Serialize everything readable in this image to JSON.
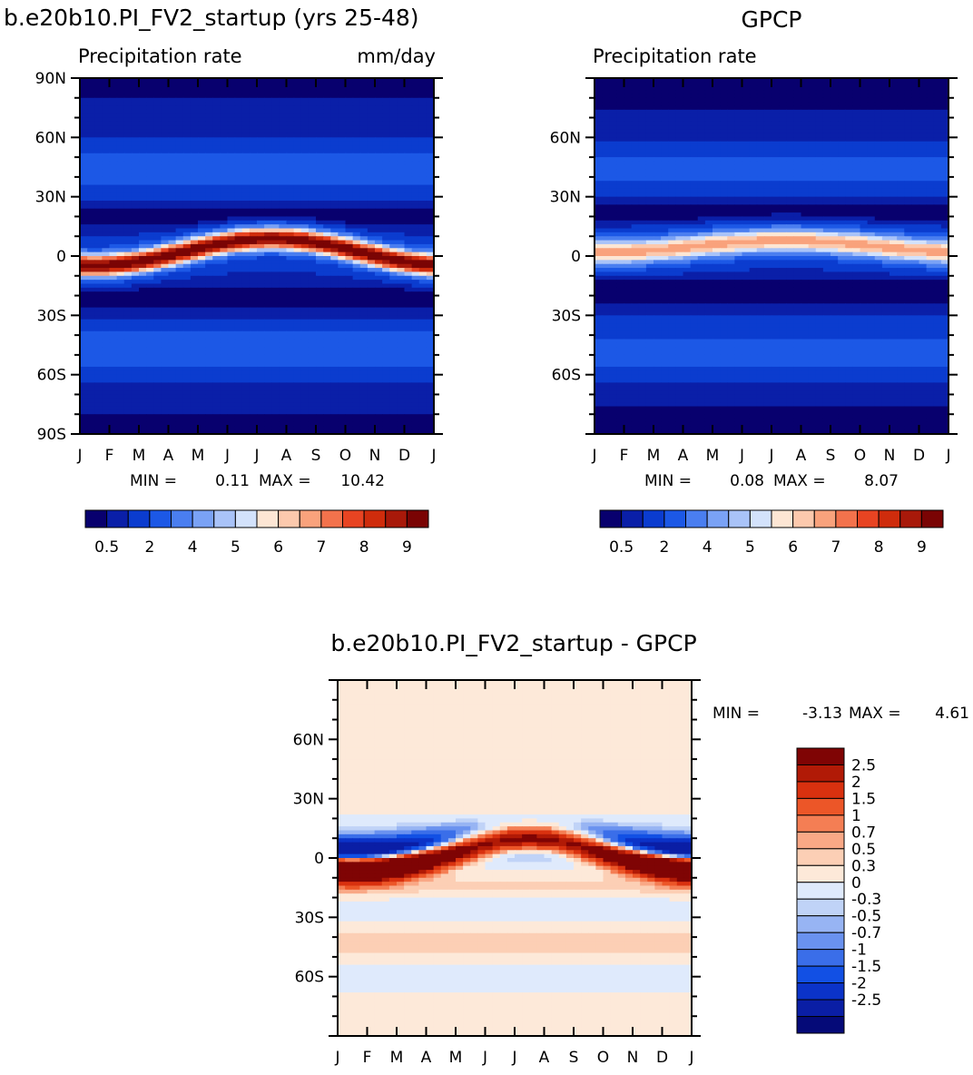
{
  "colors": {
    "abs_scale": [
      "#08006e",
      "#0a1fa8",
      "#0b3ccf",
      "#1c58e6",
      "#4a7ef0",
      "#7aa2f5",
      "#a9c3f8",
      "#d3e2fb",
      "#fde6d4",
      "#fcc9ad",
      "#f9a27c",
      "#f3724c",
      "#e84422",
      "#cf2c0c",
      "#a8190a",
      "#7a0404"
    ],
    "diff_scale": [
      "#050a78",
      "#0a1ea5",
      "#0b33c8",
      "#1250e4",
      "#3a6ee9",
      "#6a92ef",
      "#97b4f3",
      "#c0d3f7",
      "#dfeafc",
      "#fde9d9",
      "#fccfb5",
      "#f9a886",
      "#f47e54",
      "#ec5628",
      "#d9310f",
      "#b11a06",
      "#7f0404"
    ]
  },
  "chart_data": [
    {
      "id": "model",
      "type": "heatmap",
      "title": "b.e20b10.PI_FV2_startup (yrs 25-48)",
      "subtitle_left": "Precipitation rate",
      "subtitle_right": "mm/day",
      "x_tick_labels": [
        "J",
        "F",
        "M",
        "A",
        "M",
        "J",
        "J",
        "A",
        "S",
        "O",
        "N",
        "D",
        "J"
      ],
      "y_tick_labels": [
        "90N",
        "60N",
        "30N",
        "0",
        "30S",
        "60S",
        "90S"
      ],
      "y_tick_values": [
        90,
        60,
        30,
        0,
        -30,
        -60,
        -90
      ],
      "ylim": [
        -90,
        90
      ],
      "min_label": "MIN =",
      "min_value": "0.11",
      "max_label": "MAX =",
      "max_value": "10.42",
      "colorbar_labels": [
        "0.5",
        "2",
        "4",
        "5",
        "6",
        "7",
        "8",
        "9"
      ],
      "itcz_amplitude_mmday": 10.4,
      "itcz_lat_jan": -5,
      "itcz_lat_aug": 9
    },
    {
      "id": "gpcp",
      "type": "heatmap",
      "title": "GPCP",
      "subtitle_left": "Precipitation rate",
      "subtitle_right": "",
      "x_tick_labels": [
        "J",
        "F",
        "M",
        "A",
        "M",
        "J",
        "J",
        "A",
        "S",
        "O",
        "N",
        "D",
        "J"
      ],
      "y_tick_labels": [
        "60N",
        "30N",
        "0",
        "30S",
        "60S"
      ],
      "y_tick_values": [
        60,
        30,
        0,
        -30,
        -60
      ],
      "ylim": [
        -90,
        90
      ],
      "min_label": "MIN =",
      "min_value": "0.08",
      "max_label": "MAX =",
      "max_value": "8.07",
      "colorbar_labels": [
        "0.5",
        "2",
        "4",
        "5",
        "6",
        "7",
        "8",
        "9"
      ],
      "itcz_amplitude_mmday": 8.0,
      "itcz_lat_jan": 2,
      "itcz_lat_aug": 8
    },
    {
      "id": "diff",
      "type": "heatmap",
      "title": "b.e20b10.PI_FV2_startup - GPCP",
      "x_tick_labels": [
        "J",
        "F",
        "M",
        "A",
        "M",
        "J",
        "J",
        "A",
        "S",
        "O",
        "N",
        "D",
        "J"
      ],
      "y_tick_labels": [
        "60N",
        "30N",
        "0",
        "30S",
        "60S"
      ],
      "y_tick_values": [
        60,
        30,
        0,
        -30,
        -60
      ],
      "ylim": [
        -90,
        90
      ],
      "min_label": "MIN =",
      "min_value": "-3.13",
      "max_label": "MAX =",
      "max_value": "4.61",
      "colorbar_labels": [
        "2.5",
        "2",
        "1.5",
        "1",
        "0.7",
        "0.5",
        "0.3",
        "0",
        "-0.3",
        "-0.5",
        "-0.7",
        "-1",
        "-1.5",
        "-2",
        "-2.5"
      ]
    }
  ]
}
